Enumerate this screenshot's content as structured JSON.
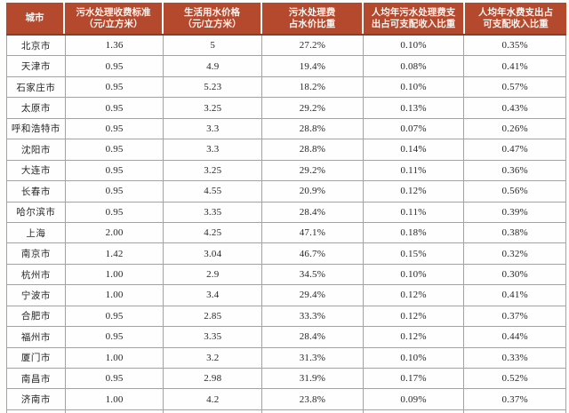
{
  "colors": {
    "header_bg": "#b5492e",
    "header_bottom_edge": "#933a21",
    "header_text": "#fdf4ef",
    "grid_line": "#a3a3a3",
    "body_text": "#262626",
    "row_bg": "#fefefe"
  },
  "chart_data": {
    "type": "table",
    "columns": [
      {
        "id": "city",
        "header_lines": [
          "城市"
        ]
      },
      {
        "id": "sewage-treatment-fee-standard",
        "header_lines": [
          "污水处理收费标准",
          "（元/立方米）"
        ]
      },
      {
        "id": "domestic-water-price",
        "header_lines": [
          "生活用水价格",
          "（元/立方米）"
        ]
      },
      {
        "id": "sewage-fee-share-of-water-price",
        "header_lines": [
          "污水处理费",
          "占水价比重"
        ]
      },
      {
        "id": "sewage-spend-share-of-disposable-income",
        "header_lines": [
          "人均年污水处理费支",
          "出占可支配收入比重"
        ]
      },
      {
        "id": "water-spend-share-of-disposable-income",
        "header_lines": [
          "人均年水费支出占",
          "可支配收入比重"
        ]
      }
    ],
    "rows": [
      [
        "北京市",
        "1.36",
        "5",
        "27.2%",
        "0.10%",
        "0.35%"
      ],
      [
        "天津市",
        "0.95",
        "4.9",
        "19.4%",
        "0.08%",
        "0.41%"
      ],
      [
        "石家庄市",
        "0.95",
        "5.23",
        "18.2%",
        "0.10%",
        "0.57%"
      ],
      [
        "太原市",
        "0.95",
        "3.25",
        "29.2%",
        "0.13%",
        "0.43%"
      ],
      [
        "呼和浩特市",
        "0.95",
        "3.3",
        "28.8%",
        "0.07%",
        "0.26%"
      ],
      [
        "沈阳市",
        "0.95",
        "3.3",
        "28.8%",
        "0.14%",
        "0.47%"
      ],
      [
        "大连市",
        "0.95",
        "3.25",
        "29.2%",
        "0.11%",
        "0.36%"
      ],
      [
        "长春市",
        "0.95",
        "4.55",
        "20.9%",
        "0.12%",
        "0.56%"
      ],
      [
        "哈尔滨市",
        "0.95",
        "3.35",
        "28.4%",
        "0.11%",
        "0.39%"
      ],
      [
        "上海",
        "2.00",
        "4.25",
        "47.1%",
        "0.18%",
        "0.38%"
      ],
      [
        "南京市",
        "1.42",
        "3.04",
        "46.7%",
        "0.15%",
        "0.32%"
      ],
      [
        "杭州市",
        "1.00",
        "2.9",
        "34.5%",
        "0.10%",
        "0.30%"
      ],
      [
        "宁波市",
        "1.00",
        "3.4",
        "29.4%",
        "0.12%",
        "0.41%"
      ],
      [
        "合肥市",
        "0.95",
        "2.85",
        "33.3%",
        "0.12%",
        "0.37%"
      ],
      [
        "福州市",
        "0.95",
        "3.35",
        "28.4%",
        "0.12%",
        "0.44%"
      ],
      [
        "厦门市",
        "1.00",
        "3.2",
        "31.3%",
        "0.10%",
        "0.33%"
      ],
      [
        "南昌市",
        "0.95",
        "2.98",
        "31.9%",
        "0.17%",
        "0.52%"
      ],
      [
        "济南市",
        "1.00",
        "4.2",
        "23.8%",
        "0.09%",
        "0.37%"
      ]
    ],
    "layout": {
      "partial_row_cut_at_bottom": true,
      "grid": true,
      "title": ""
    }
  }
}
